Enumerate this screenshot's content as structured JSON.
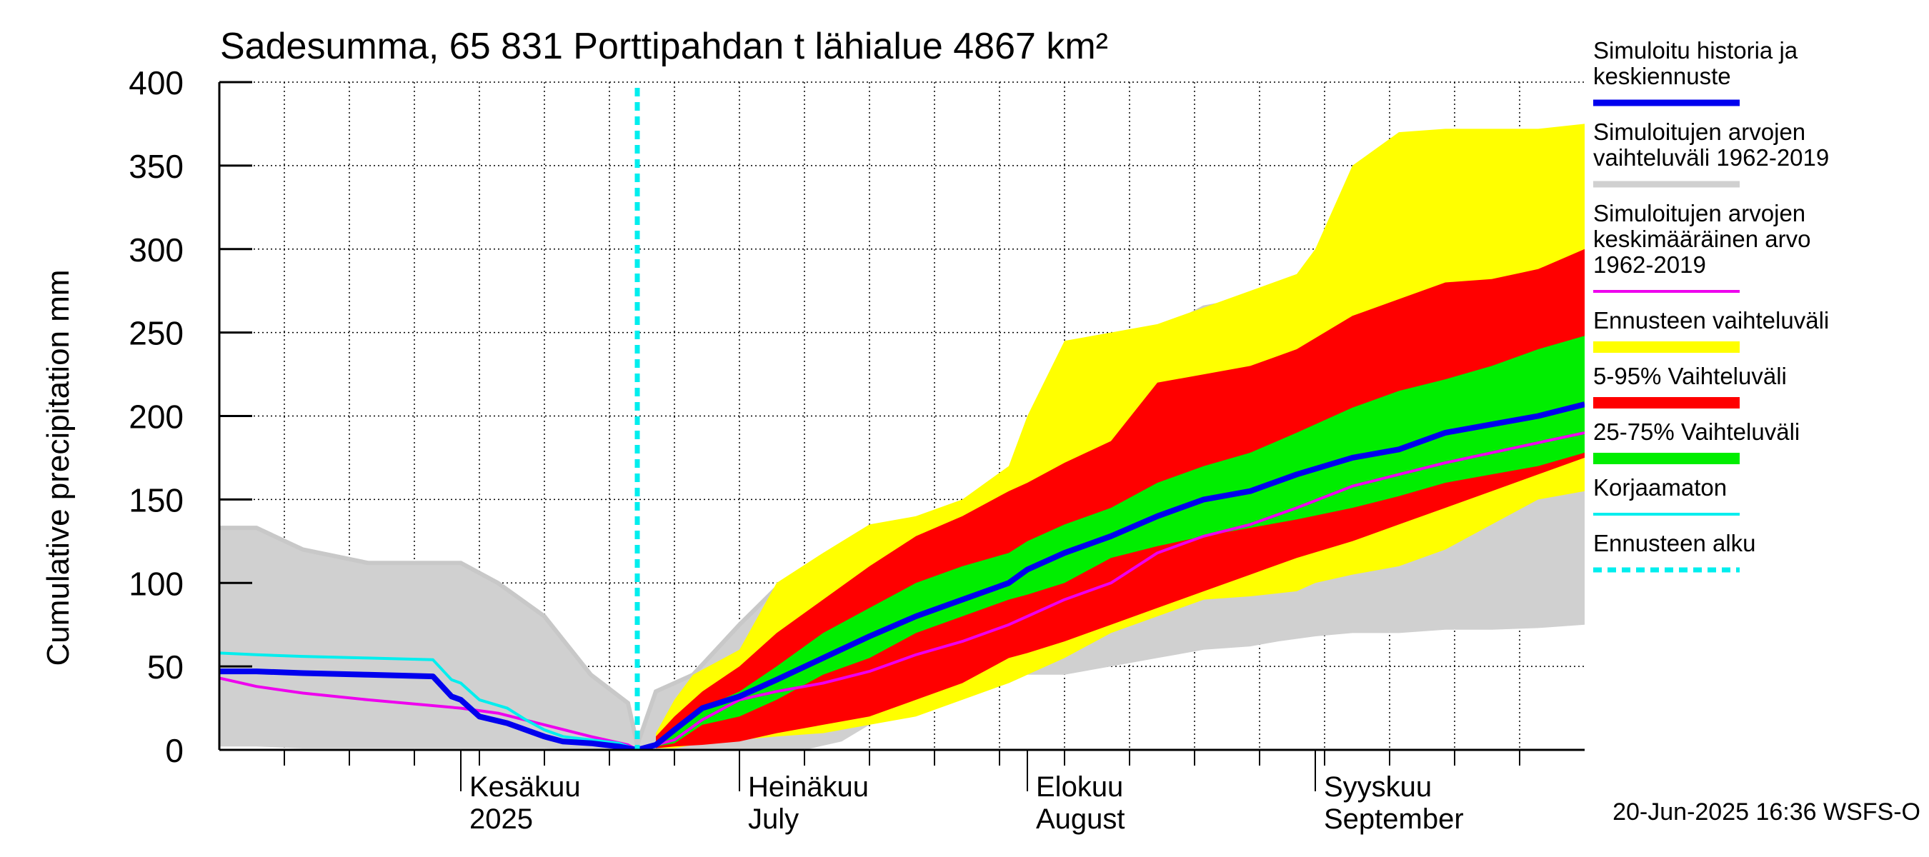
{
  "chart_data": {
    "type": "area",
    "title": "Sadesumma, 65 831 Porttipahdan t lähialue 4867 km²",
    "ylabel": "Cumulative precipitation   mm",
    "ylim": [
      0,
      400
    ],
    "yticks": [
      0,
      50,
      100,
      150,
      200,
      250,
      300,
      350,
      400
    ],
    "xlim": [
      "2025-05-06",
      "2025-09-30"
    ],
    "x_month_labels": [
      {
        "date": "2025-06-01",
        "line1": "Kesäkuu",
        "line2": "2025"
      },
      {
        "date": "2025-07-01",
        "line1": "Heinäkuu",
        "line2": "July"
      },
      {
        "date": "2025-08-01",
        "line1": "Elokuu",
        "line2": "August"
      },
      {
        "date": "2025-09-01",
        "line1": "Syyskuu",
        "line2": "September"
      }
    ],
    "forecast_start": "2025-06-20",
    "footer": "20-Jun-2025 16:36 WSFS-O",
    "legend": [
      {
        "label": "Simuloitu historia ja\nkeskiennuste",
        "color": "#0000ee",
        "style": "thick"
      },
      {
        "label": "Simuloitujen arvojen\nvaihteluväli 1962-2019",
        "color": "#d0d0d0",
        "style": "thick"
      },
      {
        "label": "Simuloitujen arvojen\nkeskimääräinen arvo\n   1962-2019",
        "color": "#ee00ee",
        "style": "line"
      },
      {
        "label": "Ennusteen vaihteluväli",
        "color": "#ffff00",
        "style": "band"
      },
      {
        "label": "5-95% Vaihteluväli",
        "color": "#ff0000",
        "style": "band"
      },
      {
        "label": "25-75% Vaihteluväli",
        "color": "#00ee00",
        "style": "band"
      },
      {
        "label": "Korjaamaton",
        "color": "#00eeee",
        "style": "line"
      },
      {
        "label": "Ennusteen alku",
        "color": "#00eeee",
        "style": "dashed"
      }
    ],
    "series": [
      {
        "name": "Simuloitujen arvojen vaihteluväli 1962-2019",
        "kind": "band",
        "color": "#d0d0d0",
        "x": [
          "2025-05-06",
          "2025-05-10",
          "2025-05-15",
          "2025-05-22",
          "2025-06-01",
          "2025-06-05",
          "2025-06-10",
          "2025-06-15",
          "2025-06-19",
          "2025-06-20",
          "2025-06-22",
          "2025-06-26",
          "2025-07-01",
          "2025-07-05",
          "2025-07-08",
          "2025-07-12",
          "2025-07-15",
          "2025-07-18",
          "2025-07-22",
          "2025-07-24",
          "2025-07-26",
          "2025-07-28",
          "2025-07-30",
          "2025-08-01",
          "2025-08-05",
          "2025-08-10",
          "2025-08-15",
          "2025-08-20",
          "2025-08-25",
          "2025-08-28",
          "2025-09-01",
          "2025-09-05",
          "2025-09-10",
          "2025-09-15",
          "2025-09-20",
          "2025-09-25",
          "2025-09-30"
        ],
        "upper": [
          133,
          133,
          120,
          112,
          112,
          100,
          80,
          45,
          28,
          3,
          35,
          45,
          75,
          97,
          100,
          102,
          110,
          125,
          135,
          145,
          148,
          158,
          168,
          178,
          200,
          215,
          250,
          265,
          270,
          272,
          290,
          340,
          360,
          365,
          365,
          367,
          372
        ],
        "lower": [
          2,
          2,
          1,
          1,
          1,
          1,
          1,
          0,
          0,
          0,
          0,
          0,
          0,
          0,
          0,
          5,
          15,
          25,
          30,
          35,
          40,
          40,
          40,
          45,
          45,
          50,
          55,
          60,
          62,
          65,
          68,
          70,
          70,
          72,
          72,
          73,
          75
        ]
      },
      {
        "name": "Ennusteen vaihteluväli",
        "kind": "band",
        "color": "#ffff00",
        "x": [
          "2025-06-22",
          "2025-06-24",
          "2025-06-26",
          "2025-07-01",
          "2025-07-05",
          "2025-07-10",
          "2025-07-15",
          "2025-07-20",
          "2025-07-25",
          "2025-07-30",
          "2025-08-01",
          "2025-08-05",
          "2025-08-10",
          "2025-08-15",
          "2025-08-20",
          "2025-08-25",
          "2025-08-30",
          "2025-09-01",
          "2025-09-05",
          "2025-09-10",
          "2025-09-15",
          "2025-09-20",
          "2025-09-25",
          "2025-09-30"
        ],
        "upper": [
          10,
          30,
          45,
          60,
          100,
          118,
          135,
          140,
          150,
          170,
          200,
          245,
          250,
          255,
          265,
          275,
          285,
          300,
          350,
          370,
          372,
          372,
          372,
          375
        ],
        "lower": [
          1,
          1,
          3,
          6,
          8,
          10,
          15,
          20,
          30,
          40,
          45,
          55,
          70,
          80,
          90,
          92,
          95,
          100,
          105,
          110,
          120,
          135,
          150,
          155
        ]
      },
      {
        "name": "5-95% Vaihteluväli",
        "kind": "band",
        "color": "#ff0000",
        "x": [
          "2025-06-22",
          "2025-06-24",
          "2025-06-27",
          "2025-07-01",
          "2025-07-05",
          "2025-07-10",
          "2025-07-15",
          "2025-07-20",
          "2025-07-25",
          "2025-07-30",
          "2025-08-01",
          "2025-08-05",
          "2025-08-10",
          "2025-08-15",
          "2025-08-20",
          "2025-08-25",
          "2025-08-30",
          "2025-09-05",
          "2025-09-10",
          "2025-09-15",
          "2025-09-20",
          "2025-09-25",
          "2025-09-30"
        ],
        "upper": [
          8,
          20,
          35,
          50,
          70,
          90,
          110,
          128,
          140,
          155,
          160,
          172,
          185,
          220,
          225,
          230,
          240,
          260,
          270,
          280,
          282,
          288,
          300
        ],
        "lower": [
          1,
          2,
          3,
          5,
          10,
          15,
          20,
          30,
          40,
          55,
          58,
          65,
          75,
          85,
          95,
          105,
          115,
          125,
          135,
          145,
          155,
          165,
          175
        ]
      },
      {
        "name": "25-75% Vaihteluväli",
        "kind": "band",
        "color": "#00ee00",
        "x": [
          "2025-06-22",
          "2025-06-24",
          "2025-06-27",
          "2025-07-01",
          "2025-07-05",
          "2025-07-10",
          "2025-07-15",
          "2025-07-20",
          "2025-07-25",
          "2025-07-30",
          "2025-08-01",
          "2025-08-05",
          "2025-08-10",
          "2025-08-15",
          "2025-08-20",
          "2025-08-25",
          "2025-08-30",
          "2025-09-05",
          "2025-09-10",
          "2025-09-15",
          "2025-09-20",
          "2025-09-25",
          "2025-09-30"
        ],
        "upper": [
          4,
          10,
          25,
          35,
          50,
          70,
          85,
          100,
          110,
          118,
          125,
          135,
          145,
          160,
          170,
          178,
          190,
          205,
          215,
          222,
          230,
          240,
          248
        ],
        "lower": [
          2,
          4,
          15,
          20,
          30,
          45,
          55,
          70,
          80,
          90,
          93,
          100,
          115,
          122,
          128,
          133,
          138,
          145,
          152,
          160,
          165,
          170,
          178
        ]
      },
      {
        "name": "Simuloitujen arvojen keskimääräinen arvo 1962-2019",
        "kind": "line",
        "color": "#ee00ee",
        "x": [
          "2025-05-06",
          "2025-05-10",
          "2025-05-15",
          "2025-05-22",
          "2025-06-01",
          "2025-06-05",
          "2025-06-10",
          "2025-06-15",
          "2025-06-19",
          "2025-06-20",
          "2025-06-24",
          "2025-06-27",
          "2025-07-01",
          "2025-07-05",
          "2025-07-10",
          "2025-07-15",
          "2025-07-20",
          "2025-07-25",
          "2025-07-30",
          "2025-08-01",
          "2025-08-05",
          "2025-08-10",
          "2025-08-15",
          "2025-08-20",
          "2025-08-25",
          "2025-08-30",
          "2025-09-05",
          "2025-09-10",
          "2025-09-15",
          "2025-09-20",
          "2025-09-25",
          "2025-09-30"
        ],
        "y": [
          43,
          38,
          34,
          30,
          25,
          22,
          15,
          8,
          3,
          0,
          6,
          18,
          30,
          35,
          40,
          47,
          57,
          65,
          75,
          80,
          90,
          100,
          118,
          128,
          135,
          145,
          158,
          165,
          172,
          178,
          184,
          190
        ]
      },
      {
        "name": "Korjaamaton",
        "kind": "line",
        "color": "#00eeee",
        "x": [
          "2025-05-06",
          "2025-05-10",
          "2025-05-15",
          "2025-05-22",
          "2025-05-29",
          "2025-05-31",
          "2025-06-01",
          "2025-06-03",
          "2025-06-06",
          "2025-06-08",
          "2025-06-10",
          "2025-06-12",
          "2025-06-15",
          "2025-06-18",
          "2025-06-19",
          "2025-06-20"
        ],
        "y": [
          58,
          57,
          56,
          55,
          54,
          42,
          40,
          30,
          25,
          18,
          12,
          8,
          6,
          4,
          2,
          0
        ]
      },
      {
        "name": "Simuloitu historia ja keskiennuste",
        "kind": "line",
        "color": "#0000ee",
        "x": [
          "2025-05-06",
          "2025-05-10",
          "2025-05-15",
          "2025-05-22",
          "2025-05-29",
          "2025-05-31",
          "2025-06-01",
          "2025-06-03",
          "2025-06-06",
          "2025-06-08",
          "2025-06-10",
          "2025-06-12",
          "2025-06-15",
          "2025-06-18",
          "2025-06-19",
          "2025-06-20",
          "2025-06-22",
          "2025-06-24",
          "2025-06-27",
          "2025-07-01",
          "2025-07-05",
          "2025-07-10",
          "2025-07-15",
          "2025-07-20",
          "2025-07-25",
          "2025-07-30",
          "2025-08-01",
          "2025-08-05",
          "2025-08-10",
          "2025-08-15",
          "2025-08-20",
          "2025-08-25",
          "2025-08-30",
          "2025-09-05",
          "2025-09-10",
          "2025-09-15",
          "2025-09-20",
          "2025-09-25",
          "2025-09-30"
        ],
        "y": [
          47,
          47,
          46,
          45,
          44,
          32,
          30,
          20,
          16,
          12,
          8,
          5,
          4,
          2,
          1,
          0,
          3,
          12,
          25,
          32,
          42,
          55,
          68,
          80,
          90,
          100,
          108,
          118,
          128,
          140,
          150,
          155,
          165,
          175,
          180,
          190,
          195,
          200,
          207
        ]
      }
    ]
  }
}
